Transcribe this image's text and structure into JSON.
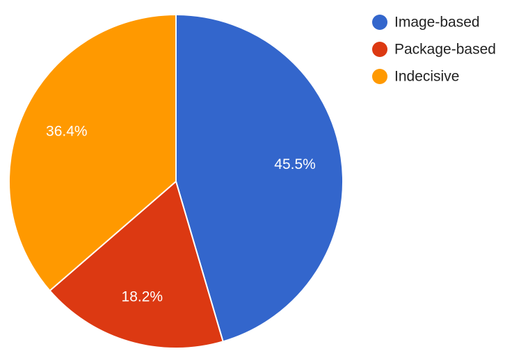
{
  "chart_data": {
    "type": "pie",
    "title": "",
    "slices": [
      {
        "label": "Image-based",
        "value": 45.5,
        "value_label": "45.5%",
        "color": "#3366cc"
      },
      {
        "label": "Package-based",
        "value": 18.2,
        "value_label": "18.2%",
        "color": "#dc3912"
      },
      {
        "label": "Indecisive",
        "value": 36.4,
        "value_label": "36.4%",
        "color": "#ff9900"
      }
    ],
    "legend": {
      "position": "top-right",
      "items": [
        "Image-based",
        "Package-based",
        "Indecisive"
      ]
    },
    "start_angle": "12 o'clock",
    "direction": "clockwise"
  }
}
